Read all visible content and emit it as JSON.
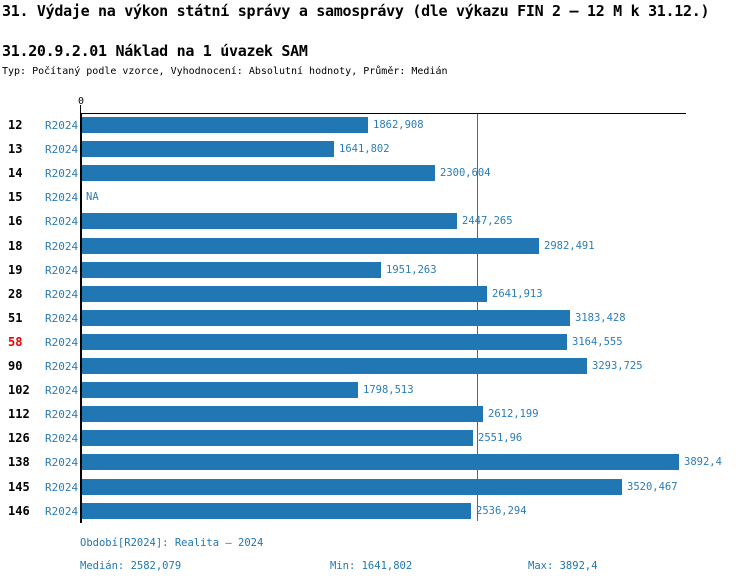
{
  "header": {
    "title": "31. Výdaje na výkon státní správy a samosprávy (dle výkazu FIN 2 – 12 M k 31.12.)",
    "subtitle": "31.20.9.2.01 Náklad na 1 úvazek SAM",
    "meta": "Typ: Počítaný podle vzorce, Vyhodnocení: Absolutní hodnoty, Průměr: Medián"
  },
  "chart_data": {
    "type": "bar",
    "orientation": "horizontal",
    "title": "31.20.9.2.01 Náklad na 1 úvazek SAM",
    "series_label": "R2024",
    "axis_zero_label": "0",
    "xlim": [
      0,
      3940
    ],
    "grid": false,
    "categories": [
      "12",
      "13",
      "14",
      "15",
      "16",
      "18",
      "19",
      "28",
      "51",
      "58",
      "90",
      "102",
      "112",
      "126",
      "138",
      "145",
      "146"
    ],
    "values": [
      1862.908,
      1641.802,
      2300.604,
      null,
      2447.265,
      2982.491,
      1951.263,
      2641.913,
      3183.428,
      3164.555,
      3293.725,
      1798.513,
      2612.199,
      2551.96,
      3892.4,
      3520.467,
      2536.294
    ],
    "value_labels": [
      "1862,908",
      "1641,802",
      "2300,604",
      "NA",
      "2447,265",
      "2982,491",
      "1951,263",
      "2641,913",
      "3183,428",
      "3164,555",
      "3293,725",
      "1798,513",
      "2612,199",
      "2551,96",
      "3892,4",
      "3520,467",
      "2536,294"
    ],
    "highlighted_category": "58",
    "median_value": 2582.079,
    "colors": {
      "bar": "#2077b4",
      "label_blue": "#2b7cb9",
      "highlight_red": "#ee0000",
      "axis": "#000000",
      "median_line": "#2077b4"
    }
  },
  "footer": {
    "period": "Období[R2024]: Realita – 2024",
    "median": "Medián: 2582,079",
    "min": "Min: 1641,802",
    "max": "Max: 3892,4"
  }
}
